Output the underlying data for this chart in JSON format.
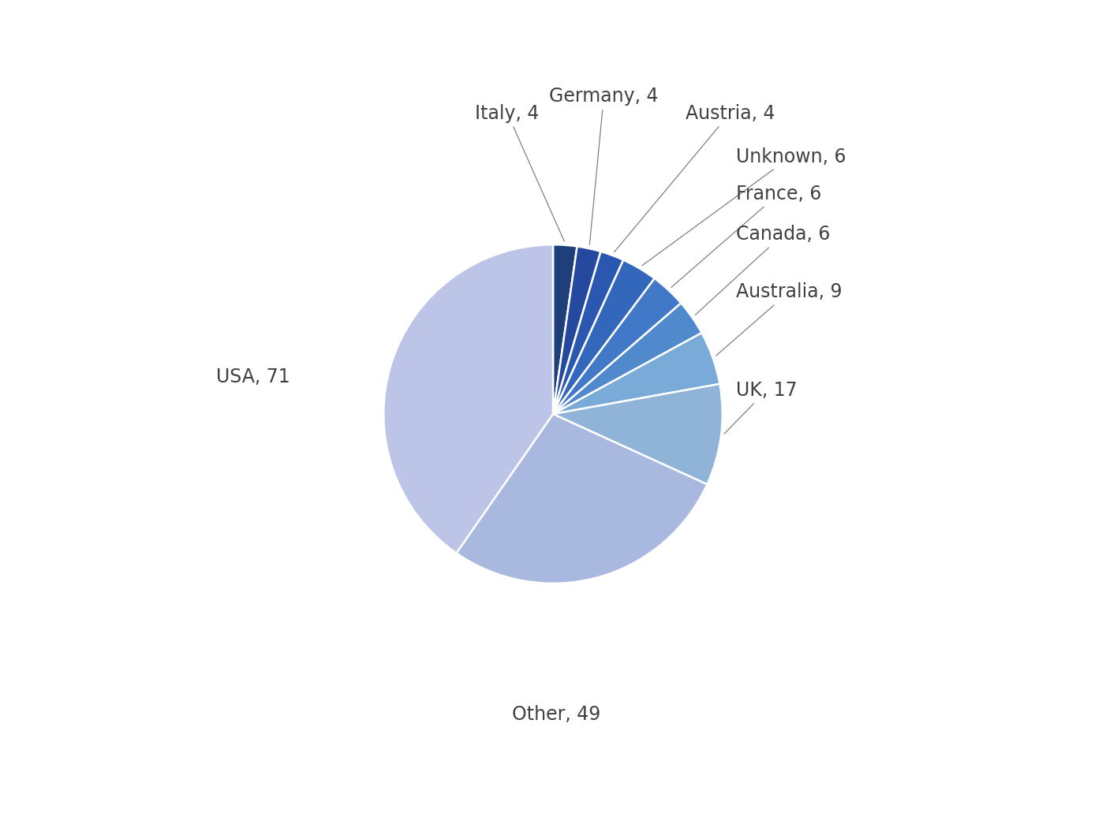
{
  "labels": [
    "Italy",
    "Germany",
    "Austria",
    "Unknown",
    "France",
    "Canada",
    "Australia",
    "UK",
    "Other",
    "USA"
  ],
  "values": [
    4,
    4,
    4,
    6,
    6,
    6,
    9,
    17,
    49,
    71
  ],
  "colors": [
    "#1e3f7a",
    "#24499e",
    "#2a57b0",
    "#3367bc",
    "#4278c8",
    "#5089cc",
    "#7aaad8",
    "#8fb4d8",
    "#a8b8de",
    "#bcc5e8"
  ],
  "wedge_edge_color": "white",
  "wedge_edge_width": 1.8,
  "background_color": "#ffffff",
  "text_color": "#404040",
  "font_size": 17,
  "figure_width": 14.02,
  "figure_height": 10.5
}
